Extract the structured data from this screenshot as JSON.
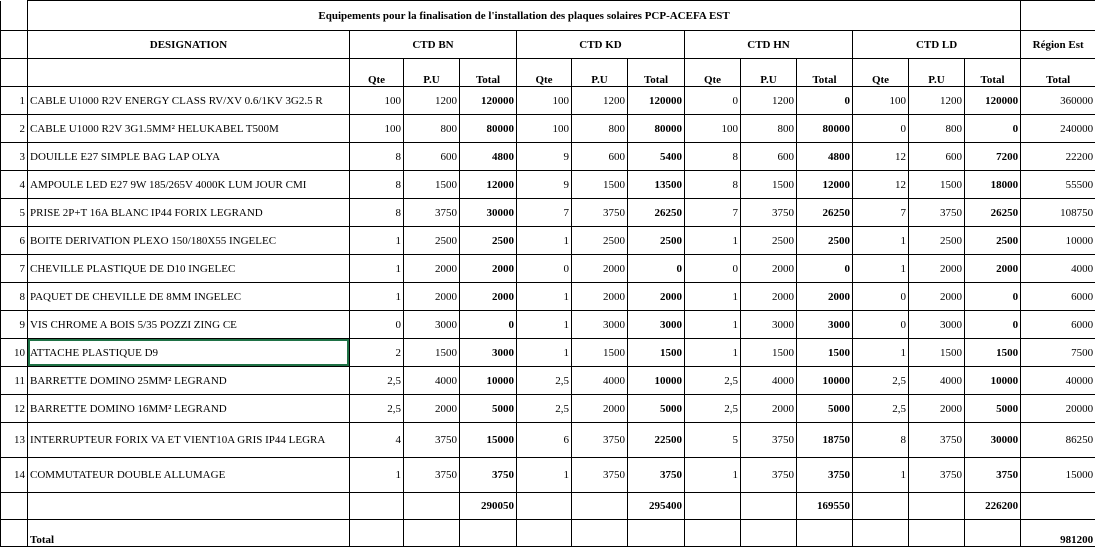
{
  "title": "Equipements pour la finalisation de l'installation des plaques solaires PCP-ACEFA EST",
  "headers": {
    "designation": "DESIGNATION",
    "groups": [
      "CTD BN",
      "CTD KD",
      "CTD HN",
      "CTD LD"
    ],
    "region": "Région Est",
    "sub": [
      "Qte",
      "P.U",
      "Total"
    ],
    "region_sub": "Total"
  },
  "rows": [
    {
      "n": "1",
      "label": "CABLE U1000 R2V ENERGY CLASS RV/XV 0.6/1KV 3G2.5 R",
      "bn": [
        "100",
        "1200",
        "120000"
      ],
      "kd": [
        "100",
        "1200",
        "120000"
      ],
      "hn": [
        "0",
        "1200",
        "0"
      ],
      "ld": [
        "100",
        "1200",
        "120000"
      ],
      "region": "360000"
    },
    {
      "n": "2",
      "label": "CABLE U1000  R2V 3G1.5MM² HELUKABEL T500M",
      "bn": [
        "100",
        "800",
        "80000"
      ],
      "kd": [
        "100",
        "800",
        "80000"
      ],
      "hn": [
        "100",
        "800",
        "80000"
      ],
      "ld": [
        "0",
        "800",
        "0"
      ],
      "region": "240000"
    },
    {
      "n": "3",
      "label": "DOUILLE E27 SIMPLE BAG LAP OLYA",
      "bn": [
        "8",
        "600",
        "4800"
      ],
      "kd": [
        "9",
        "600",
        "5400"
      ],
      "hn": [
        "8",
        "600",
        "4800"
      ],
      "ld": [
        "12",
        "600",
        "7200"
      ],
      "region": "22200"
    },
    {
      "n": "4",
      "label": "AMPOULE LED E27 9W 185/265V 4000K  LUM JOUR CMI",
      "bn": [
        "8",
        "1500",
        "12000"
      ],
      "kd": [
        "9",
        "1500",
        "13500"
      ],
      "hn": [
        "8",
        "1500",
        "12000"
      ],
      "ld": [
        "12",
        "1500",
        "18000"
      ],
      "region": "55500"
    },
    {
      "n": "5",
      "label": "PRISE 2P+T 16A BLANC IP44 FORIX LEGRAND",
      "bn": [
        "8",
        "3750",
        "30000"
      ],
      "kd": [
        "7",
        "3750",
        "26250"
      ],
      "hn": [
        "7",
        "3750",
        "26250"
      ],
      "ld": [
        "7",
        "3750",
        "26250"
      ],
      "region": "108750"
    },
    {
      "n": "6",
      "label": "BOITE DERIVATION PLEXO 150/180X55 INGELEC",
      "bn": [
        "1",
        "2500",
        "2500"
      ],
      "kd": [
        "1",
        "2500",
        "2500"
      ],
      "hn": [
        "1",
        "2500",
        "2500"
      ],
      "ld": [
        "1",
        "2500",
        "2500"
      ],
      "region": "10000"
    },
    {
      "n": "7",
      "label": "CHEVILLE PLASTIQUE DE D10 INGELEC",
      "bn": [
        "1",
        "2000",
        "2000"
      ],
      "kd": [
        "0",
        "2000",
        "0"
      ],
      "hn": [
        "0",
        "2000",
        "0"
      ],
      "ld": [
        "1",
        "2000",
        "2000"
      ],
      "region": "4000"
    },
    {
      "n": "8",
      "label": "PAQUET DE CHEVILLE DE 8MM INGELEC",
      "bn": [
        "1",
        "2000",
        "2000"
      ],
      "kd": [
        "1",
        "2000",
        "2000"
      ],
      "hn": [
        "1",
        "2000",
        "2000"
      ],
      "ld": [
        "0",
        "2000",
        "0"
      ],
      "region": "6000"
    },
    {
      "n": "9",
      "label": "VIS CHROME A BOIS 5/35 POZZI ZING CE",
      "bn": [
        "0",
        "3000",
        "0"
      ],
      "kd": [
        "1",
        "3000",
        "3000"
      ],
      "hn": [
        "1",
        "3000",
        "3000"
      ],
      "ld": [
        "0",
        "3000",
        "0"
      ],
      "region": "6000"
    },
    {
      "n": "10",
      "label": "ATTACHE PLASTIQUE D9",
      "bn": [
        "2",
        "1500",
        "3000"
      ],
      "kd": [
        "1",
        "1500",
        "1500"
      ],
      "hn": [
        "1",
        "1500",
        "1500"
      ],
      "ld": [
        "1",
        "1500",
        "1500"
      ],
      "region": "7500"
    },
    {
      "n": "11",
      "label": "BARRETTE DOMINO 25MM² LEGRAND",
      "bn": [
        "2,5",
        "4000",
        "10000"
      ],
      "kd": [
        "2,5",
        "4000",
        "10000"
      ],
      "hn": [
        "2,5",
        "4000",
        "10000"
      ],
      "ld": [
        "2,5",
        "4000",
        "10000"
      ],
      "region": "40000"
    },
    {
      "n": "12",
      "label": "BARRETTE DOMINO 16MM² LEGRAND",
      "bn": [
        "2,5",
        "2000",
        "5000"
      ],
      "kd": [
        "2,5",
        "2000",
        "5000"
      ],
      "hn": [
        "2,5",
        "2000",
        "5000"
      ],
      "ld": [
        "2,5",
        "2000",
        "5000"
      ],
      "region": "20000"
    },
    {
      "n": "13",
      "label": "INTERRUPTEUR FORIX  VA ET VIENT10A  GRIS IP44 LEGRA",
      "bn": [
        "4",
        "3750",
        "15000"
      ],
      "kd": [
        "6",
        "3750",
        "22500"
      ],
      "hn": [
        "5",
        "3750",
        "18750"
      ],
      "ld": [
        "8",
        "3750",
        "30000"
      ],
      "region": "86250"
    },
    {
      "n": "14",
      "label": "COMMUTATEUR DOUBLE ALLUMAGE",
      "bn": [
        "1",
        "3750",
        "3750"
      ],
      "kd": [
        "1",
        "3750",
        "3750"
      ],
      "hn": [
        "1",
        "3750",
        "3750"
      ],
      "ld": [
        "1",
        "3750",
        "3750"
      ],
      "region": "15000"
    }
  ],
  "totals": {
    "bn": "290050",
    "kd": "295400",
    "hn": "169550",
    "ld": "226200"
  },
  "grand": {
    "label": "Total",
    "value": "981200"
  }
}
